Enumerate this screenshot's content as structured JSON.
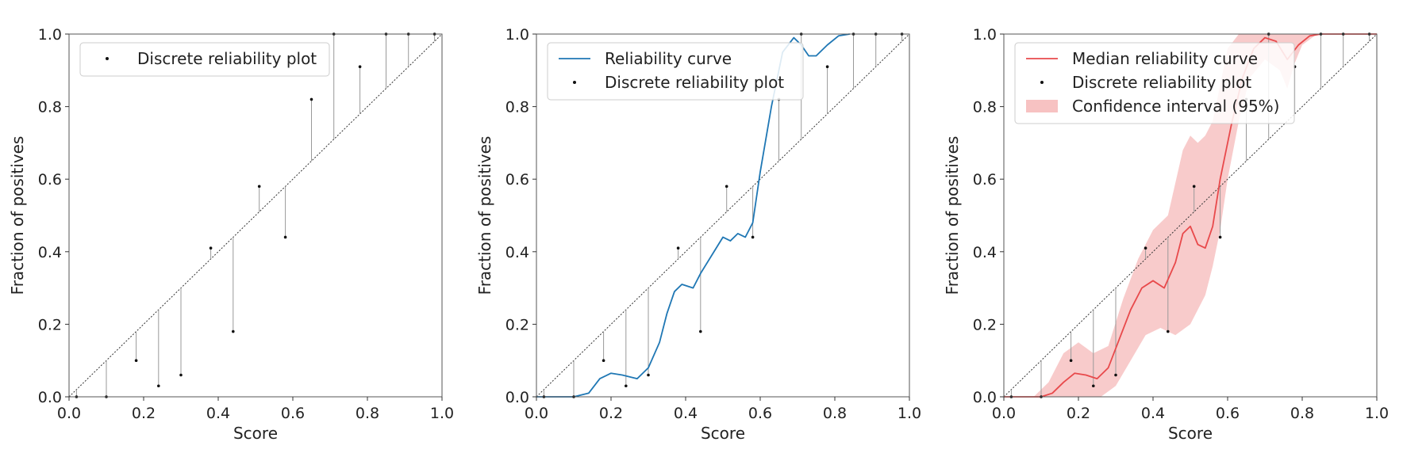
{
  "chart_data": [
    {
      "type": "scatter",
      "xlabel": "Score",
      "ylabel": "Fraction of positives",
      "xlim": [
        0.0,
        1.0
      ],
      "ylim": [
        0.0,
        1.0
      ],
      "xticks": [
        "0.0",
        "0.2",
        "0.4",
        "0.6",
        "0.8",
        "1.0"
      ],
      "yticks": [
        "0.0",
        "0.2",
        "0.4",
        "0.6",
        "0.8",
        "1.0"
      ],
      "legend_position": "top-left",
      "legend": [
        "Discrete reliability plot"
      ],
      "diagonal": true,
      "discrete_points": {
        "x": [
          0.02,
          0.1,
          0.18,
          0.24,
          0.3,
          0.38,
          0.44,
          0.51,
          0.58,
          0.65,
          0.71,
          0.78,
          0.85,
          0.91,
          0.98
        ],
        "y": [
          0.0,
          0.0,
          0.1,
          0.03,
          0.06,
          0.41,
          0.18,
          0.58,
          0.44,
          0.82,
          1.0,
          0.91,
          1.0,
          1.0,
          1.0
        ]
      }
    },
    {
      "type": "line",
      "xlabel": "Score",
      "ylabel": "Fraction of positives",
      "xlim": [
        0.0,
        1.0
      ],
      "ylim": [
        0.0,
        1.0
      ],
      "xticks": [
        "0.0",
        "0.2",
        "0.4",
        "0.6",
        "0.8",
        "1.0"
      ],
      "yticks": [
        "0.0",
        "0.2",
        "0.4",
        "0.6",
        "0.8",
        "1.0"
      ],
      "legend_position": "top-left",
      "legend": [
        "Reliability curve",
        "Discrete reliability plot"
      ],
      "diagonal": true,
      "colors": {
        "curve": "#1f77b4"
      },
      "discrete_points": {
        "x": [
          0.02,
          0.1,
          0.18,
          0.24,
          0.3,
          0.38,
          0.44,
          0.51,
          0.58,
          0.65,
          0.71,
          0.78,
          0.85,
          0.91,
          0.98
        ],
        "y": [
          0.0,
          0.0,
          0.1,
          0.03,
          0.06,
          0.41,
          0.18,
          0.58,
          0.44,
          0.82,
          1.0,
          0.91,
          1.0,
          1.0,
          1.0
        ]
      },
      "curve": {
        "x": [
          0.0,
          0.1,
          0.14,
          0.17,
          0.2,
          0.23,
          0.27,
          0.3,
          0.33,
          0.35,
          0.37,
          0.39,
          0.42,
          0.44,
          0.47,
          0.5,
          0.52,
          0.54,
          0.56,
          0.58,
          0.6,
          0.63,
          0.66,
          0.69,
          0.71,
          0.73,
          0.75,
          0.78,
          0.81,
          0.84
        ],
        "y": [
          0.0,
          0.0,
          0.01,
          0.05,
          0.065,
          0.06,
          0.05,
          0.08,
          0.15,
          0.23,
          0.29,
          0.31,
          0.3,
          0.34,
          0.39,
          0.44,
          0.43,
          0.45,
          0.44,
          0.48,
          0.62,
          0.8,
          0.95,
          0.99,
          0.97,
          0.94,
          0.94,
          0.97,
          0.995,
          1.0
        ]
      }
    },
    {
      "type": "area",
      "xlabel": "Score",
      "ylabel": "Fraction of positives",
      "xlim": [
        0.0,
        1.0
      ],
      "ylim": [
        0.0,
        1.0
      ],
      "xticks": [
        "0.0",
        "0.2",
        "0.4",
        "0.6",
        "0.8",
        "1.0"
      ],
      "yticks": [
        "0.0",
        "0.2",
        "0.4",
        "0.6",
        "0.8",
        "1.0"
      ],
      "legend_position": "top-left",
      "legend": [
        "Median reliability curve",
        "Discrete reliability plot",
        "Confidence interval (95%)"
      ],
      "diagonal": true,
      "colors": {
        "curve": "#e8494b",
        "band": "#f4a8a8"
      },
      "discrete_points": {
        "x": [
          0.02,
          0.1,
          0.18,
          0.24,
          0.3,
          0.38,
          0.44,
          0.51,
          0.58,
          0.65,
          0.71,
          0.78,
          0.85,
          0.91,
          0.98
        ],
        "y": [
          0.0,
          0.0,
          0.1,
          0.03,
          0.06,
          0.41,
          0.18,
          0.58,
          0.44,
          0.82,
          1.0,
          0.91,
          1.0,
          1.0,
          1.0
        ]
      },
      "curve": {
        "x": [
          0.0,
          0.1,
          0.13,
          0.16,
          0.19,
          0.22,
          0.25,
          0.28,
          0.31,
          0.34,
          0.37,
          0.4,
          0.43,
          0.46,
          0.48,
          0.5,
          0.52,
          0.54,
          0.56,
          0.58,
          0.61,
          0.64,
          0.67,
          0.7,
          0.73,
          0.76,
          0.79,
          0.82,
          0.85,
          1.0
        ],
        "y": [
          0.0,
          0.0,
          0.01,
          0.04,
          0.065,
          0.06,
          0.05,
          0.08,
          0.16,
          0.24,
          0.3,
          0.32,
          0.3,
          0.37,
          0.45,
          0.47,
          0.42,
          0.41,
          0.47,
          0.6,
          0.75,
          0.88,
          0.96,
          0.99,
          0.98,
          0.93,
          0.97,
          0.995,
          1.0,
          1.0
        ]
      },
      "band_upper": {
        "x": [
          0.0,
          0.08,
          0.12,
          0.16,
          0.2,
          0.24,
          0.28,
          0.32,
          0.36,
          0.4,
          0.44,
          0.48,
          0.5,
          0.52,
          0.54,
          0.56,
          0.58,
          0.6,
          0.63,
          0.66,
          0.7,
          0.73,
          0.76,
          0.8,
          0.84,
          1.0
        ],
        "y": [
          0.0,
          0.0,
          0.04,
          0.12,
          0.15,
          0.12,
          0.14,
          0.27,
          0.38,
          0.46,
          0.5,
          0.68,
          0.72,
          0.7,
          0.72,
          0.76,
          0.86,
          0.96,
          1.0,
          1.0,
          1.0,
          1.0,
          1.0,
          1.0,
          1.0,
          1.0
        ]
      },
      "band_lower": {
        "x": [
          0.0,
          0.1,
          0.14,
          0.18,
          0.22,
          0.26,
          0.3,
          0.34,
          0.38,
          0.42,
          0.46,
          0.5,
          0.54,
          0.56,
          0.58,
          0.6,
          0.63,
          0.66,
          0.7,
          0.74,
          0.76,
          0.78,
          0.8,
          0.84,
          1.0
        ],
        "y": [
          0.0,
          0.0,
          0.0,
          0.0,
          0.0,
          0.0,
          0.03,
          0.1,
          0.17,
          0.19,
          0.17,
          0.2,
          0.28,
          0.36,
          0.46,
          0.6,
          0.76,
          0.88,
          0.93,
          0.9,
          0.85,
          0.92,
          0.97,
          1.0,
          1.0
        ]
      }
    }
  ]
}
